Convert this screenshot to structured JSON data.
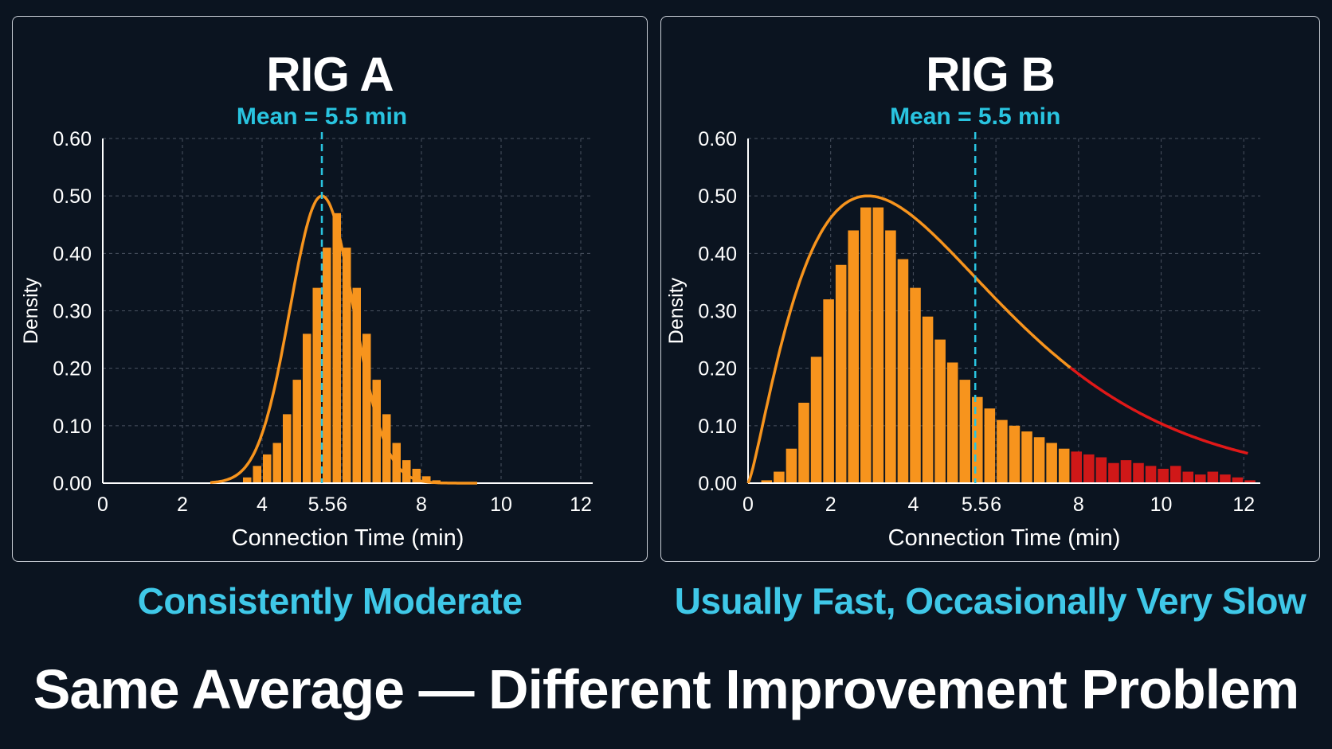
{
  "headline": "Same Average — Different Improvement Problem",
  "colors": {
    "background": "#0b1420",
    "bar_orange": "#f7941d",
    "bar_red": "#d01818",
    "curve_orange": "#f7941d",
    "curve_red": "#e01818",
    "mean_line": "#29c4e0",
    "subtitle": "#3fc8e8",
    "grid": "#4a5260",
    "text": "#ffffff"
  },
  "chart_data": [
    {
      "type": "bar",
      "title": "RIG A",
      "subtitle": "Consistently Moderate",
      "xlabel": "Connection Time (min)",
      "ylabel": "Density",
      "xlim": [
        0,
        12.3
      ],
      "ylim": [
        0,
        0.6
      ],
      "x_ticks": [
        "0",
        "2",
        "4",
        "5.5",
        "6",
        "8",
        "10",
        "12"
      ],
      "x_tick_values": [
        0,
        2,
        4,
        5.5,
        6,
        8,
        10,
        12
      ],
      "y_ticks": [
        "0.00",
        "0.10",
        "0.20",
        "0.30",
        "0.40",
        "0.50",
        "0.60"
      ],
      "y_tick_values": [
        0,
        0.1,
        0.2,
        0.3,
        0.4,
        0.5,
        0.6
      ],
      "grid": true,
      "bin_width": 0.25,
      "bin_starts": [
        3.5,
        3.75,
        4.0,
        4.25,
        4.5,
        4.75,
        5.0,
        5.25,
        5.5,
        5.75,
        6.0,
        6.25,
        6.5,
        6.75,
        7.0,
        7.25,
        7.5,
        7.75,
        8.0,
        8.25
      ],
      "values": [
        0.01,
        0.03,
        0.05,
        0.07,
        0.12,
        0.18,
        0.26,
        0.34,
        0.41,
        0.47,
        0.41,
        0.34,
        0.26,
        0.18,
        0.12,
        0.07,
        0.04,
        0.025,
        0.012,
        0.005
      ],
      "curve": {
        "type": "normal",
        "mean": 5.5,
        "sd": 0.8,
        "peak": 0.5,
        "x_range": [
          2.7,
          9.4
        ]
      },
      "mean": 5.5,
      "mean_label": "Mean = 5.5 min"
    },
    {
      "type": "bar",
      "title": "RIG B",
      "subtitle": "Usually Fast, Occasionally Very Slow",
      "xlabel": "Connection Time (min)",
      "ylabel": "Density",
      "xlim": [
        0,
        12.4
      ],
      "ylim": [
        0,
        0.6
      ],
      "x_ticks": [
        "0",
        "2",
        "4",
        "5.5",
        "6",
        "8",
        "10",
        "12"
      ],
      "x_tick_values": [
        0,
        2,
        4,
        5.5,
        6,
        8,
        10,
        12
      ],
      "y_ticks": [
        "0.00",
        "0.10",
        "0.20",
        "0.30",
        "0.40",
        "0.50",
        "0.60"
      ],
      "y_tick_values": [
        0,
        0.1,
        0.2,
        0.3,
        0.4,
        0.5,
        0.6
      ],
      "grid": true,
      "bin_width": 0.3,
      "bin_starts": [
        0.3,
        0.6,
        0.9,
        1.2,
        1.5,
        1.8,
        2.1,
        2.4,
        2.7,
        3.0,
        3.3,
        3.6,
        3.9,
        4.2,
        4.5,
        4.8,
        5.1,
        5.4,
        5.7,
        6.0,
        6.3,
        6.6,
        6.9,
        7.2,
        7.5,
        7.8,
        8.1,
        8.4,
        8.7,
        9.0,
        9.3,
        9.6,
        9.9,
        10.2,
        10.5,
        10.8,
        11.1,
        11.4,
        11.7,
        12.0
      ],
      "values": [
        0.005,
        0.02,
        0.06,
        0.14,
        0.22,
        0.32,
        0.38,
        0.44,
        0.48,
        0.48,
        0.44,
        0.39,
        0.34,
        0.29,
        0.25,
        0.21,
        0.18,
        0.15,
        0.13,
        0.11,
        0.1,
        0.09,
        0.08,
        0.07,
        0.06,
        0.055,
        0.05,
        0.045,
        0.035,
        0.04,
        0.035,
        0.03,
        0.025,
        0.03,
        0.02,
        0.015,
        0.02,
        0.015,
        0.01,
        0.005
      ],
      "red_from": 7.8,
      "curve": {
        "type": "skewed",
        "mode": 2.9,
        "peak": 0.5,
        "x_range": [
          0,
          12.1
        ],
        "red_from": 7.8
      },
      "mean": 5.5,
      "mean_label": "Mean = 5.5 min"
    }
  ]
}
